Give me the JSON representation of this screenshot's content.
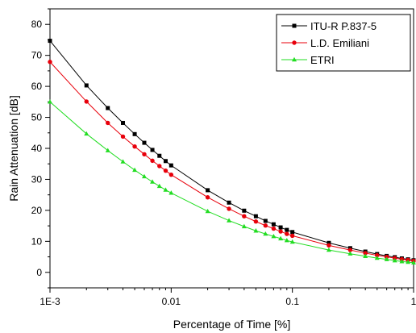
{
  "chart_data": {
    "type": "line",
    "xlabel": "Percentage of Time [%]",
    "ylabel": "Rain Attenuation [dB]",
    "xscale": "log",
    "xlim": [
      0.001,
      1
    ],
    "ylim": [
      -5,
      85
    ],
    "x_ticks": [
      {
        "value": 0.001,
        "label": "1E-3"
      },
      {
        "value": 0.01,
        "label": "0.01"
      },
      {
        "value": 0.1,
        "label": "0.1"
      },
      {
        "value": 1,
        "label": "1"
      }
    ],
    "y_ticks": [
      {
        "value": 0,
        "label": "0"
      },
      {
        "value": 10,
        "label": "10"
      },
      {
        "value": 20,
        "label": "20"
      },
      {
        "value": 30,
        "label": "30"
      },
      {
        "value": 40,
        "label": "40"
      },
      {
        "value": 50,
        "label": "50"
      },
      {
        "value": 60,
        "label": "60"
      },
      {
        "value": 70,
        "label": "70"
      },
      {
        "value": 80,
        "label": "80"
      }
    ],
    "grid": false,
    "legend_position": "top-right",
    "x": [
      0.001,
      0.002,
      0.003,
      0.004,
      0.005,
      0.006,
      0.007,
      0.008,
      0.009,
      0.01,
      0.02,
      0.03,
      0.04,
      0.05,
      0.06,
      0.07,
      0.08,
      0.09,
      0.1,
      0.2,
      0.3,
      0.4,
      0.5,
      0.6,
      0.7,
      0.8,
      0.9,
      1
    ],
    "series": [
      {
        "name": "ITU-R P.837-5",
        "color": "#000000",
        "marker": "square",
        "values": [
          74.7,
          60.3,
          53.0,
          48.2,
          44.6,
          41.8,
          39.5,
          37.6,
          35.9,
          34.5,
          26.5,
          22.5,
          19.9,
          18.1,
          16.6,
          15.5,
          14.5,
          13.7,
          13.0,
          9.5,
          7.8,
          6.7,
          5.9,
          5.3,
          4.9,
          4.5,
          4.2,
          3.9
        ]
      },
      {
        "name": "L.D. Emiliani",
        "color": "#e8000b",
        "marker": "circle",
        "values": [
          67.9,
          55.1,
          48.2,
          43.8,
          40.6,
          38.1,
          36.0,
          34.3,
          32.8,
          31.5,
          24.2,
          20.5,
          18.1,
          16.4,
          15.1,
          14.1,
          13.2,
          12.4,
          11.8,
          8.7,
          7.2,
          6.2,
          5.5,
          5.0,
          4.6,
          4.2,
          4.0,
          3.7
        ]
      },
      {
        "name": "ETRI",
        "color": "#22dd22",
        "marker": "triangle",
        "values": [
          55.0,
          44.7,
          39.3,
          35.7,
          33.0,
          30.9,
          29.2,
          27.8,
          26.6,
          25.6,
          19.7,
          16.7,
          14.8,
          13.4,
          12.4,
          11.6,
          10.9,
          10.3,
          9.8,
          7.2,
          6.0,
          5.2,
          4.6,
          4.2,
          3.8,
          3.5,
          3.3,
          3.1
        ]
      }
    ]
  }
}
